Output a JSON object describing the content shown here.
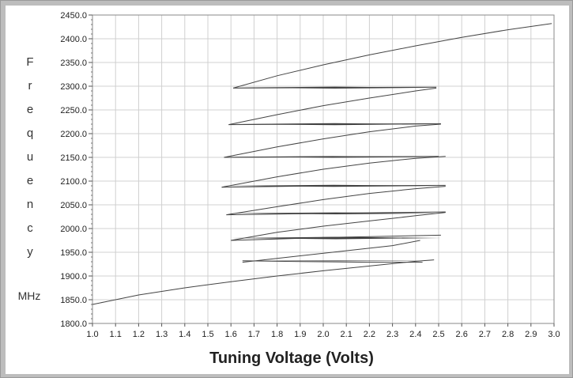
{
  "chart_data": {
    "type": "line",
    "xlabel": "Tuning Voltage (Volts)",
    "ylabel_letters": [
      "F",
      "r",
      "e",
      "q",
      "u",
      "e",
      "n",
      "c",
      "y"
    ],
    "ylabel_unit": "MHz",
    "xlim": [
      1.0,
      3.0
    ],
    "ylim": [
      1800.0,
      2450.0
    ],
    "x_ticks": [
      "1.0",
      "1.1",
      "1.2",
      "1.3",
      "1.4",
      "1.5",
      "1.6",
      "1.7",
      "1.8",
      "1.9",
      "2.0",
      "2.1",
      "2.2",
      "2.3",
      "2.4",
      "2.5",
      "2.6",
      "2.7",
      "2.8",
      "2.9",
      "3.0"
    ],
    "y_ticks": [
      "1800.0",
      "1850.0",
      "1900.0",
      "1950.0",
      "2000.0",
      "2050.0",
      "2100.0",
      "2150.0",
      "2200.0",
      "2250.0",
      "2300.0",
      "2350.0",
      "2400.0",
      "2450.0"
    ],
    "grid": true,
    "colors": {
      "line": "#444444",
      "grid": "#d0d0d0",
      "frame": "#bdbdbd"
    },
    "series": [
      {
        "x": [
          1.0,
          1.2,
          1.4,
          1.6,
          1.8,
          2.0,
          2.2,
          2.4,
          2.48
        ],
        "y": [
          1840,
          1860,
          1875,
          1888,
          1900,
          1911,
          1921,
          1931,
          1934
        ]
      },
      {
        "x": [
          1.65,
          1.8,
          2.0,
          2.2,
          2.43
        ],
        "y": [
          1932,
          1931,
          1930,
          1929,
          1929
        ]
      },
      {
        "x": [
          1.6,
          1.8,
          2.0,
          2.2,
          2.4,
          2.51
        ],
        "y": [
          1975,
          1978,
          1981,
          1983,
          1985,
          1986
        ]
      },
      {
        "x": [
          1.65,
          2.3,
          2.42
        ],
        "y": [
          1929,
          1964,
          1975
        ]
      },
      {
        "x": [
          1.6,
          1.8,
          2.0,
          2.2,
          2.4,
          2.53
        ],
        "y": [
          1975,
          1992,
          2005,
          2016,
          2027,
          2034
        ]
      },
      {
        "x": [
          1.58,
          2.0,
          2.53
        ],
        "y": [
          2029,
          2032,
          2035
        ]
      },
      {
        "x": [
          1.58,
          1.8,
          2.0,
          2.2,
          2.4,
          2.53
        ],
        "y": [
          2029,
          2046,
          2061,
          2074,
          2084,
          2089
        ]
      },
      {
        "x": [
          1.56,
          2.0,
          2.53
        ],
        "y": [
          2087,
          2090,
          2091
        ]
      },
      {
        "x": [
          1.56,
          1.8,
          2.0,
          2.2,
          2.4,
          2.53
        ],
        "y": [
          2087,
          2109,
          2125,
          2138,
          2148,
          2152
        ]
      },
      {
        "x": [
          1.57,
          2.0,
          2.5
        ],
        "y": [
          2150,
          2151,
          2152
        ]
      },
      {
        "x": [
          1.57,
          1.8,
          2.0,
          2.2,
          2.4,
          2.51
        ],
        "y": [
          2150,
          2172,
          2189,
          2204,
          2216,
          2220
        ]
      },
      {
        "x": [
          1.59,
          2.0,
          2.51
        ],
        "y": [
          2219,
          2220,
          2221
        ]
      },
      {
        "x": [
          1.59,
          1.8,
          2.0,
          2.2,
          2.4,
          2.49
        ],
        "y": [
          2219,
          2240,
          2259,
          2275,
          2290,
          2296
        ]
      },
      {
        "x": [
          1.61,
          2.0,
          2.49
        ],
        "y": [
          2296,
          2297,
          2298
        ]
      },
      {
        "x": [
          1.61,
          1.8,
          2.0,
          2.2,
          2.4,
          2.6,
          2.8,
          2.99
        ],
        "y": [
          2296,
          2322,
          2345,
          2366,
          2385,
          2403,
          2419,
          2432
        ]
      }
    ],
    "bands": [
      {
        "x0": 1.65,
        "x1": 2.48,
        "y": 1932,
        "h": 1.5
      },
      {
        "x0": 1.6,
        "x1": 2.51,
        "y": 1980,
        "h": 5
      },
      {
        "x0": 1.58,
        "x1": 2.53,
        "y": 2032,
        "h": 4
      },
      {
        "x0": 1.56,
        "x1": 2.53,
        "y": 2090,
        "h": 4
      },
      {
        "x0": 1.57,
        "x1": 2.51,
        "y": 2151,
        "h": 3.5
      },
      {
        "x0": 1.59,
        "x1": 2.51,
        "y": 2220,
        "h": 4
      },
      {
        "x0": 1.61,
        "x1": 2.49,
        "y": 2297,
        "h": 4
      }
    ]
  }
}
